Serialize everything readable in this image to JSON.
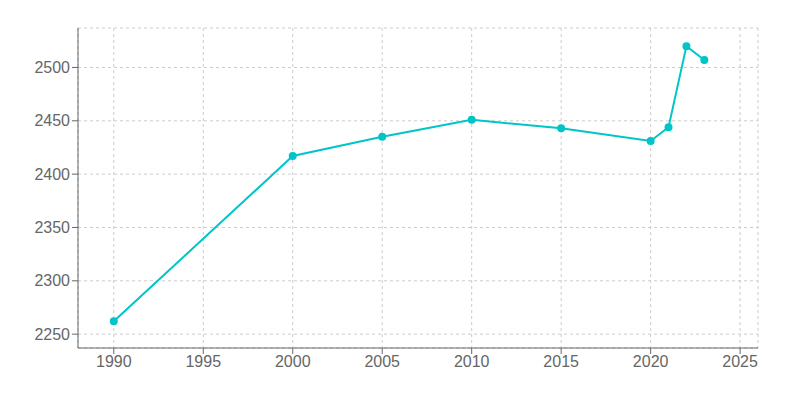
{
  "chart_data": {
    "type": "line",
    "x": [
      1990,
      2000,
      2005,
      2010,
      2015,
      2020,
      2021,
      2022,
      2023
    ],
    "values": [
      2262,
      2417,
      2435,
      2451,
      2443,
      2431,
      2444,
      2520,
      2507
    ],
    "color": "#00c5c8",
    "marker": "circle",
    "xlim": [
      1988,
      2026
    ],
    "ylim": [
      2237,
      2537
    ],
    "xticks": [
      1990,
      1995,
      2000,
      2005,
      2010,
      2015,
      2020,
      2025
    ],
    "yticks": [
      2250,
      2300,
      2350,
      2400,
      2450,
      2500
    ],
    "grid": true
  }
}
